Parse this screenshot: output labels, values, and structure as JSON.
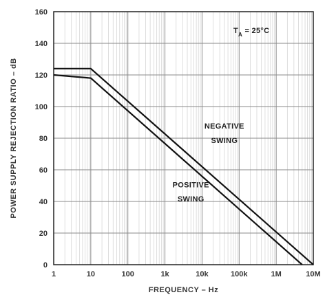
{
  "chart_data": {
    "type": "line",
    "title": "",
    "xlabel": "FREQUENCY – Hz",
    "ylabel": "POWER SUPPLY REJECTION RATIO – dB",
    "x_scale": "log",
    "xlim": [
      1,
      10000000
    ],
    "ylim": [
      0,
      160
    ],
    "grid": true,
    "x_ticks": [
      {
        "value": 1,
        "label": "1"
      },
      {
        "value": 10,
        "label": "10"
      },
      {
        "value": 100,
        "label": "100"
      },
      {
        "value": 1000,
        "label": "1k"
      },
      {
        "value": 10000,
        "label": "10k"
      },
      {
        "value": 100000,
        "label": "100k"
      },
      {
        "value": 1000000,
        "label": "1M"
      },
      {
        "value": 10000000,
        "label": "10M"
      }
    ],
    "y_ticks": [
      {
        "value": 0,
        "label": "0"
      },
      {
        "value": 20,
        "label": "20"
      },
      {
        "value": 40,
        "label": "40"
      },
      {
        "value": 60,
        "label": "60"
      },
      {
        "value": 80,
        "label": "80"
      },
      {
        "value": 100,
        "label": "100"
      },
      {
        "value": 120,
        "label": "120"
      },
      {
        "value": 140,
        "label": "140"
      },
      {
        "value": 160,
        "label": "160"
      }
    ],
    "series": [
      {
        "name": "NEGATIVE SWING",
        "x": [
          1,
          10,
          10000000
        ],
        "y": [
          124,
          124,
          0
        ]
      },
      {
        "name": "POSITIVE SWING",
        "x": [
          1,
          10,
          5000000
        ],
        "y": [
          120,
          118,
          0
        ]
      }
    ],
    "annotations": [
      {
        "text": "NEGATIVE",
        "x": 40000,
        "y": 86
      },
      {
        "text": "SWING",
        "x": 40000,
        "y": 77
      },
      {
        "text": "POSITIVE",
        "x": 5000,
        "y": 49
      },
      {
        "text": "SWING",
        "x": 5000,
        "y": 40
      }
    ],
    "condition_label": {
      "main": "T",
      "sub": "A",
      "rest": " = 25°C"
    }
  }
}
